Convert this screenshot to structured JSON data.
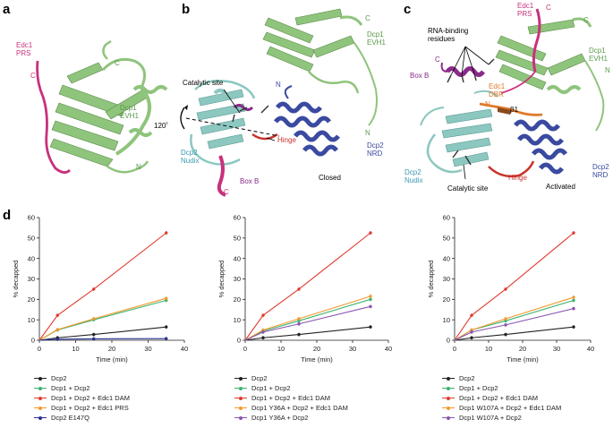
{
  "panels": {
    "a": {
      "letter": "a",
      "labels": {
        "edc1_prs": "Edc1\nPRS",
        "dcp1_evh1": "Dcp1\nEVH1",
        "c_magenta": "C",
        "c_green": "C",
        "n_green": "N"
      }
    },
    "b": {
      "letter": "b",
      "labels": {
        "catalytic_site": "Catalytic site",
        "rotation": "120˚",
        "dcp2_nudix": "Dcp2\nNudix",
        "box_b": "Box B",
        "c_box": "C",
        "hinge": "Hinge",
        "dcp2_nrd": "Dcp2\nNRD",
        "closed": "Closed",
        "dcp1_evh1": "Dcp1\nEVH1",
        "c_top": "C",
        "n_mid": "N",
        "n_right": "N"
      }
    },
    "c": {
      "letter": "c",
      "labels": {
        "edc1_prs": "Edc1\nPRS",
        "rna_binding": "RNA-binding\nresidues",
        "dcp1_evh1": "Dcp1\nEVH1",
        "box_b": "Box B",
        "edc1_dbr": "Edc1\nDBR",
        "beta1": "β1",
        "dcp2_nudix": "Dcp2\nNudix",
        "catalytic_site": "Catalytic site",
        "hinge": "Hinge",
        "activated": "Activated",
        "dcp2_nrd": "Dcp2\nNRD",
        "c1": "C",
        "c2": "C",
        "c3": "C",
        "n1": "N",
        "n2": "N"
      }
    },
    "d": {
      "letter": "d"
    }
  },
  "colors": {
    "black": "#222222",
    "green": "#3cb371",
    "red": "#e03c31",
    "orange": "#f29a2e",
    "navy": "#2a2f8f",
    "purple": "#8a55b0",
    "evh1_green": "#8fc47c",
    "nudix_teal": "#8cc7c0",
    "nrd_blue": "#3a4aa0",
    "magenta": "#c8307c",
    "hinge_red": "#c8342c",
    "dbr_orange": "#e07a2a",
    "boxb_purple": "#8a2b8a"
  },
  "chart_data": [
    {
      "type": "line",
      "xlabel": "Time (min)",
      "ylabel": "% decapped",
      "xlim": [
        0,
        40
      ],
      "ylim": [
        0,
        60
      ],
      "xticks": [
        "0",
        "10",
        "20",
        "30",
        "40"
      ],
      "yticks": [
        "0",
        "10",
        "20",
        "30",
        "40",
        "50",
        "60"
      ],
      "x": [
        0,
        5,
        15,
        35
      ],
      "series": [
        {
          "name": "Dcp2",
          "color": "#222222",
          "values": [
            0,
            1.2,
            2.8,
            6.5
          ]
        },
        {
          "name": "Dcp1 + Dcp2",
          "color": "#3cb371",
          "values": [
            0,
            5,
            10,
            19.5
          ]
        },
        {
          "name": "Dcp1 + Dcp2 + Edc1 DAM",
          "color": "#e03c31",
          "values": [
            0,
            12.2,
            25,
            52.5
          ]
        },
        {
          "name": "Dcp1 + Dcp2 + Edc1 PRS",
          "color": "#f29a2e",
          "values": [
            0,
            5.2,
            10.5,
            20.5
          ]
        },
        {
          "name": "Dcp2 E147Q",
          "color": "#2a2f8f",
          "values": [
            0,
            0.5,
            0.7,
            0.8
          ]
        }
      ]
    },
    {
      "type": "line",
      "xlabel": "Time (min)",
      "ylabel": "% decapped",
      "xlim": [
        0,
        40
      ],
      "ylim": [
        0,
        60
      ],
      "xticks": [
        "0",
        "10",
        "20",
        "30",
        "40"
      ],
      "yticks": [
        "0",
        "10",
        "20",
        "30",
        "40",
        "50",
        "60"
      ],
      "x": [
        0,
        5,
        15,
        35
      ],
      "series": [
        {
          "name": "Dcp2",
          "color": "#222222",
          "values": [
            0,
            1.2,
            2.8,
            6.5
          ]
        },
        {
          "name": "Dcp1 + Dcp2",
          "color": "#3cb371",
          "values": [
            0,
            4.5,
            9.5,
            20
          ]
        },
        {
          "name": "Dcp1 + Dcp2 + Edc1 DAM",
          "color": "#e03c31",
          "values": [
            0,
            12.2,
            25,
            52.5
          ]
        },
        {
          "name": "Dcp1 Y36A + Dcp2 + Edc1 DAM",
          "color": "#f29a2e",
          "values": [
            0,
            5,
            10.5,
            21.5
          ]
        },
        {
          "name": "Dcp1 Y36A + Dcp2",
          "color": "#8a55b0",
          "values": [
            0,
            4,
            8,
            16.5
          ]
        }
      ]
    },
    {
      "type": "line",
      "xlabel": "Time (min)",
      "ylabel": "% decapped",
      "xlim": [
        0,
        40
      ],
      "ylim": [
        0,
        60
      ],
      "xticks": [
        "0",
        "10",
        "20",
        "30",
        "40"
      ],
      "yticks": [
        "0",
        "10",
        "20",
        "30",
        "40",
        "50",
        "60"
      ],
      "x": [
        0,
        5,
        15,
        35
      ],
      "series": [
        {
          "name": "Dcp2",
          "color": "#222222",
          "values": [
            0,
            1.2,
            2.8,
            6.5
          ]
        },
        {
          "name": "Dcp1 + Dcp2",
          "color": "#3cb371",
          "values": [
            0,
            5,
            9.5,
            19.5
          ]
        },
        {
          "name": "Dcp1 + Dcp2 + Edc1 DAM",
          "color": "#e03c31",
          "values": [
            0,
            12.2,
            25,
            52.5
          ]
        },
        {
          "name": "Dcp1 W107A + Dcp2 + Edc1 DAM",
          "color": "#f29a2e",
          "values": [
            0,
            5,
            10.5,
            21
          ]
        },
        {
          "name": "Dcp1 W107A + Dcp2",
          "color": "#8a55b0",
          "values": [
            0,
            4,
            7.5,
            15.5
          ]
        }
      ]
    }
  ]
}
